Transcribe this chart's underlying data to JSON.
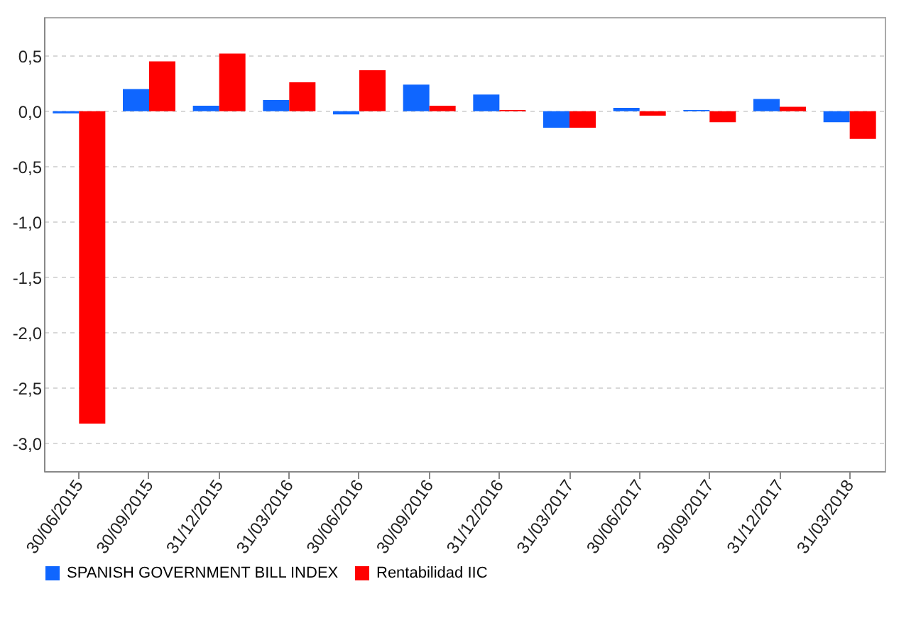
{
  "chart_data": {
    "type": "bar",
    "categories": [
      "30/06/2015",
      "30/09/2015",
      "31/12/2015",
      "31/03/2016",
      "30/06/2016",
      "30/09/2016",
      "31/12/2016",
      "31/03/2017",
      "30/06/2017",
      "30/09/2017",
      "31/12/2017",
      "31/03/2018"
    ],
    "series": [
      {
        "name": "SPANISH GOVERNMENT BILL INDEX",
        "color": "#0f66ff",
        "values": [
          -0.02,
          0.2,
          0.05,
          0.1,
          -0.03,
          0.24,
          0.15,
          -0.15,
          0.03,
          0.01,
          0.11,
          -0.1
        ]
      },
      {
        "name": "Rentabilidad IIC",
        "color": "#ff0000",
        "values": [
          -2.82,
          0.45,
          0.52,
          0.26,
          0.37,
          0.05,
          0.01,
          -0.15,
          -0.04,
          -0.1,
          0.04,
          -0.25
        ]
      }
    ],
    "ylim": [
      -3.25,
      0.85
    ],
    "yticks": [
      {
        "value": -3,
        "label": "-3,0"
      },
      {
        "value": -2.5,
        "label": "-2,5"
      },
      {
        "value": -2,
        "label": "-2,0"
      },
      {
        "value": -1.5,
        "label": "-1,5"
      },
      {
        "value": -1,
        "label": "-1,0"
      },
      {
        "value": -0.5,
        "label": "-0,5"
      },
      {
        "value": 0,
        "label": "0,0"
      },
      {
        "value": 0.5,
        "label": "0,5"
      }
    ],
    "grid": "y",
    "legend": "bottom"
  }
}
